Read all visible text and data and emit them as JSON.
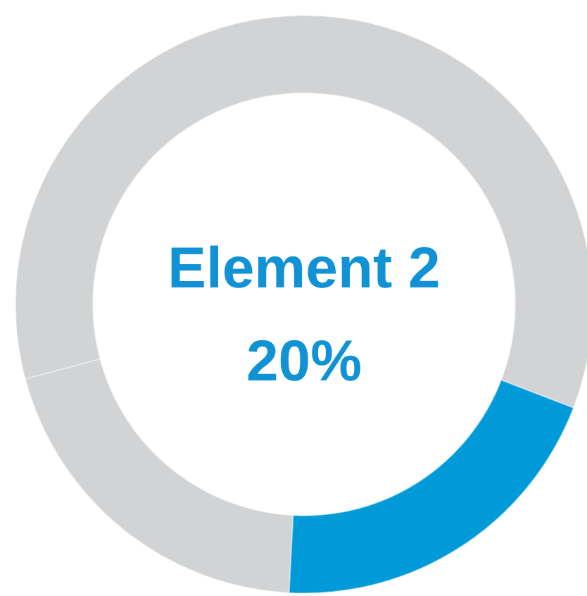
{
  "chart_data": {
    "type": "donut",
    "categories": [
      null,
      "Element 2",
      null
    ],
    "values": [
      60,
      20,
      20
    ],
    "colors": [
      "#d1d3d4",
      "#009ad9",
      "#d1d3d4"
    ],
    "value_labels": [
      null,
      "20%",
      null
    ]
  }
}
